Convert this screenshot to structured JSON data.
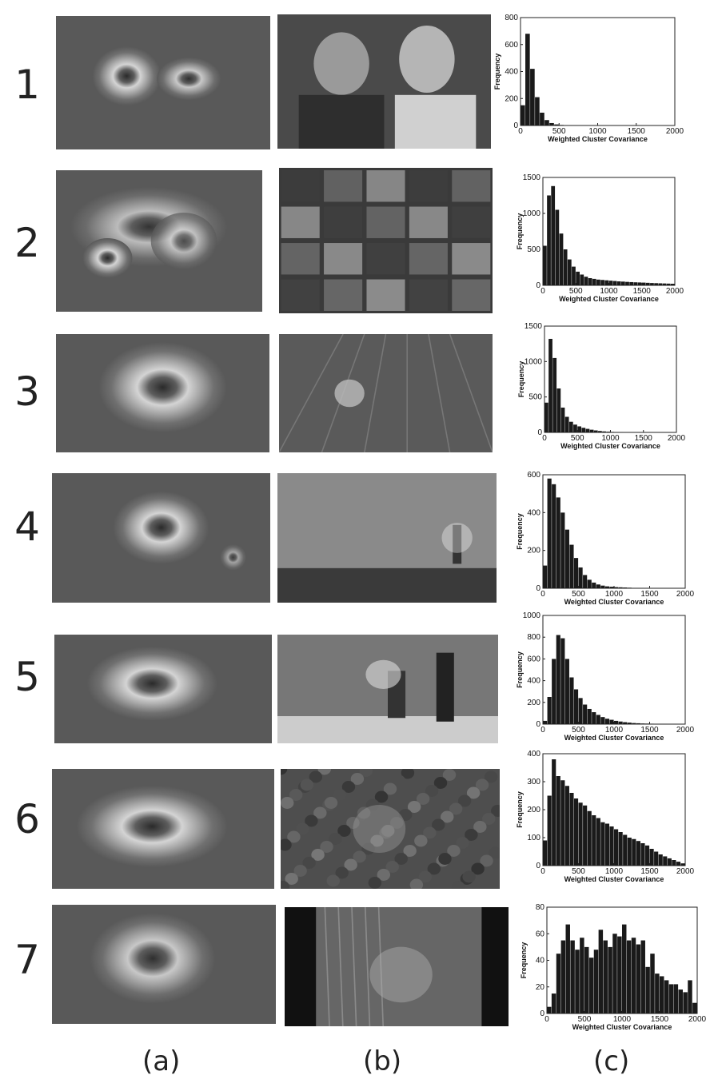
{
  "row_labels": [
    "1",
    "2",
    "3",
    "4",
    "5",
    "6",
    "7"
  ],
  "panel_labels": [
    "(a)",
    "(b)",
    "(c)"
  ],
  "chart_data": [
    {
      "type": "bar",
      "row": "1",
      "xlabel": "Weighted Cluster Covariance",
      "ylabel": "Frequency",
      "xlim": [
        0,
        2000
      ],
      "ylim": [
        0,
        800
      ],
      "xticks": [
        0,
        500,
        1000,
        1500,
        2000
      ],
      "yticks": [
        0,
        200,
        400,
        600,
        800
      ],
      "bin_width": 62.5,
      "values": [
        150,
        680,
        420,
        210,
        95,
        40,
        18,
        8,
        4,
        2,
        1,
        0,
        0,
        0,
        0,
        0,
        0,
        0,
        0,
        0,
        0,
        0,
        0,
        0,
        0,
        0,
        0,
        0,
        0,
        0,
        0,
        0
      ]
    },
    {
      "type": "bar",
      "row": "2",
      "xlabel": "Weighted Cluster Covariance",
      "ylabel": "Frequency",
      "xlim": [
        0,
        2000
      ],
      "ylim": [
        0,
        1500
      ],
      "xticks": [
        0,
        500,
        1000,
        1500,
        2000
      ],
      "yticks": [
        0,
        500,
        1000,
        1500
      ],
      "bin_width": 62.5,
      "values": [
        550,
        1250,
        1380,
        1050,
        720,
        500,
        360,
        260,
        190,
        150,
        120,
        100,
        90,
        80,
        75,
        70,
        65,
        60,
        55,
        52,
        48,
        45,
        42,
        40,
        38,
        35,
        32,
        30,
        28,
        26,
        24,
        22
      ]
    },
    {
      "type": "bar",
      "row": "3",
      "xlabel": "Weighted Cluster Covariance",
      "ylabel": "Frequency",
      "xlim": [
        0,
        2000
      ],
      "ylim": [
        0,
        1500
      ],
      "xticks": [
        0,
        500,
        1000,
        1500,
        2000
      ],
      "yticks": [
        0,
        500,
        1000,
        1500
      ],
      "bin_width": 62.5,
      "values": [
        420,
        1320,
        1050,
        620,
        350,
        220,
        150,
        110,
        85,
        65,
        50,
        38,
        28,
        20,
        14,
        10,
        7,
        5,
        3,
        2,
        1,
        1,
        0,
        0,
        0,
        0,
        0,
        0,
        0,
        0,
        0,
        0
      ]
    },
    {
      "type": "bar",
      "row": "4",
      "xlabel": "Weighted Cluster Covariance",
      "ylabel": "Frequency",
      "xlim": [
        0,
        2000
      ],
      "ylim": [
        0,
        600
      ],
      "xticks": [
        0,
        500,
        1000,
        1500,
        2000
      ],
      "yticks": [
        0,
        200,
        400,
        600
      ],
      "bin_width": 62.5,
      "values": [
        120,
        580,
        550,
        480,
        400,
        310,
        230,
        160,
        110,
        70,
        45,
        30,
        20,
        14,
        10,
        8,
        6,
        5,
        4,
        3,
        2,
        2,
        1,
        1,
        0,
        0,
        0,
        0,
        0,
        0,
        0,
        0
      ]
    },
    {
      "type": "bar",
      "row": "5",
      "xlabel": "Weighted Cluster Covariance",
      "ylabel": "Frequency",
      "xlim": [
        0,
        2000
      ],
      "ylim": [
        0,
        1000
      ],
      "xticks": [
        0,
        500,
        1000,
        1500,
        2000
      ],
      "yticks": [
        0,
        200,
        400,
        600,
        800,
        1000
      ],
      "bin_width": 62.5,
      "values": [
        30,
        250,
        600,
        820,
        790,
        600,
        430,
        320,
        240,
        180,
        140,
        110,
        85,
        65,
        50,
        40,
        30,
        24,
        18,
        14,
        10,
        8,
        6,
        5,
        4,
        3,
        2,
        2,
        1,
        1,
        0,
        0
      ]
    },
    {
      "type": "bar",
      "row": "6",
      "xlabel": "Weighted Cluster Covariance",
      "ylabel": "Frequency",
      "xlim": [
        0,
        2000
      ],
      "ylim": [
        0,
        400
      ],
      "xticks": [
        0,
        500,
        1000,
        1500,
        2000
      ],
      "yticks": [
        0,
        100,
        200,
        300,
        400
      ],
      "bin_width": 62.5,
      "values": [
        90,
        250,
        380,
        320,
        305,
        285,
        260,
        240,
        225,
        215,
        195,
        180,
        170,
        155,
        150,
        140,
        130,
        120,
        110,
        100,
        95,
        88,
        80,
        72,
        60,
        50,
        40,
        33,
        26,
        20,
        14,
        8
      ]
    },
    {
      "type": "bar",
      "row": "7",
      "xlabel": "Weighted Cluster Covariance",
      "ylabel": "Frequency",
      "xlim": [
        0,
        2000
      ],
      "ylim": [
        0,
        80
      ],
      "xticks": [
        0,
        500,
        1000,
        1500,
        2000
      ],
      "yticks": [
        0,
        20,
        40,
        60,
        80
      ],
      "bin_width": 62.5,
      "values": [
        5,
        15,
        45,
        55,
        67,
        55,
        48,
        57,
        50,
        42,
        48,
        63,
        55,
        50,
        60,
        58,
        67,
        55,
        57,
        52,
        55,
        35,
        45,
        30,
        28,
        25,
        22,
        22,
        18,
        16,
        25,
        8
      ]
    }
  ]
}
